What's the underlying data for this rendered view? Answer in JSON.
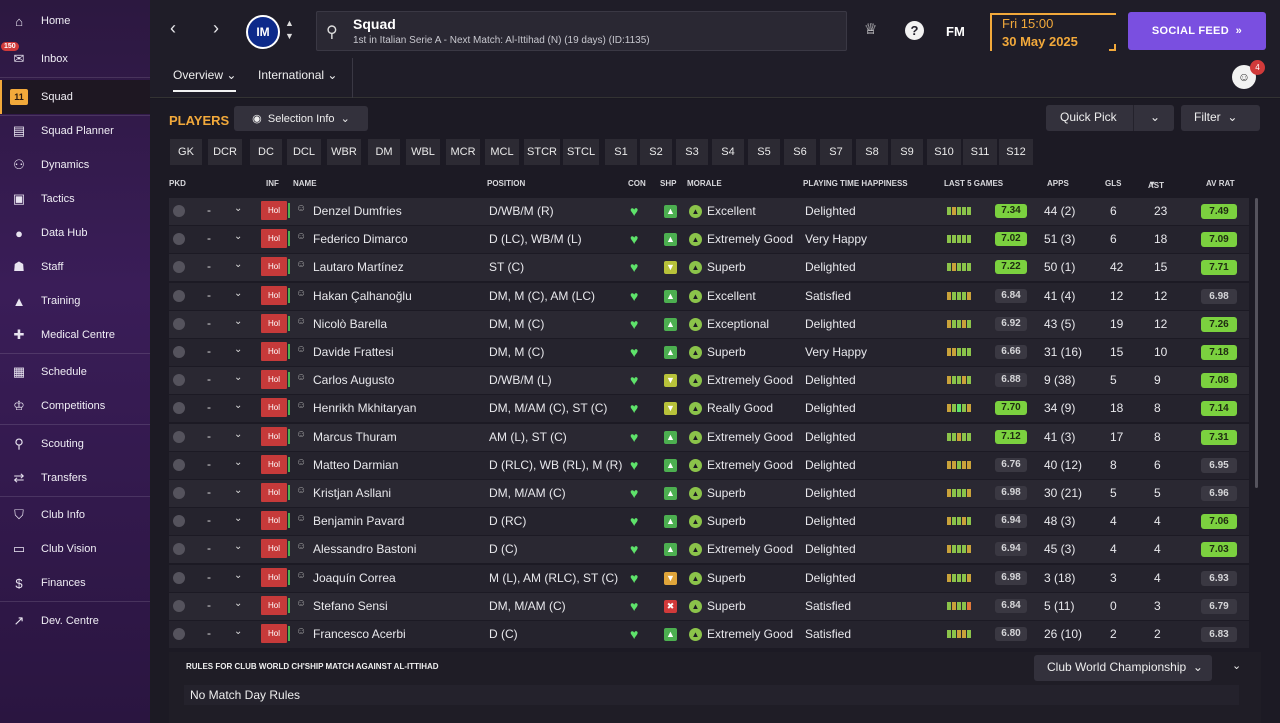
{
  "sidebar": {
    "items": [
      {
        "label": "Home",
        "icon": "home-icon",
        "glyph": "⌂"
      },
      {
        "label": "Inbox",
        "icon": "inbox-icon",
        "glyph": "✉",
        "badge": "150"
      },
      {
        "label": "Squad",
        "icon": "squad-shirt-icon",
        "glyph": "11"
      },
      {
        "label": "Squad Planner",
        "icon": "clipboard-icon",
        "glyph": "▤"
      },
      {
        "label": "Dynamics",
        "icon": "dynamics-icon",
        "glyph": "⚇"
      },
      {
        "label": "Tactics",
        "icon": "tactics-board-icon",
        "glyph": "▣"
      },
      {
        "label": "Data Hub",
        "icon": "data-hub-icon",
        "glyph": "●"
      },
      {
        "label": "Staff",
        "icon": "staff-icon",
        "glyph": "☗"
      },
      {
        "label": "Training",
        "icon": "training-cone-icon",
        "glyph": "▲"
      },
      {
        "label": "Medical Centre",
        "icon": "medical-kit-icon",
        "glyph": "✚"
      },
      {
        "label": "Schedule",
        "icon": "calendar-icon",
        "glyph": "▦"
      },
      {
        "label": "Competitions",
        "icon": "trophy-icon",
        "glyph": "♔"
      },
      {
        "label": "Scouting",
        "icon": "magnifier-icon",
        "glyph": "⚲"
      },
      {
        "label": "Transfers",
        "icon": "transfer-arrows-icon",
        "glyph": "⇄"
      },
      {
        "label": "Club Info",
        "icon": "club-shield-icon",
        "glyph": "⛉"
      },
      {
        "label": "Club Vision",
        "icon": "briefcase-icon",
        "glyph": "▭"
      },
      {
        "label": "Finances",
        "icon": "finances-icon",
        "glyph": "$"
      },
      {
        "label": "Dev. Centre",
        "icon": "development-icon",
        "glyph": "↗"
      }
    ]
  },
  "header": {
    "title": "Squad",
    "subtitle": "1st in Italian Serie A - Next Match: Al-Ittihad (N) (19 days) (ID:1135)",
    "crest_text": "IM",
    "fm_label": "FM",
    "help_label": "?",
    "date_line1": "Fri 15:00",
    "date_line2": "30 May 2025",
    "social_label": "SOCIAL FEED",
    "notif_count": "4"
  },
  "subnav": {
    "tabs": [
      "Overview",
      "International"
    ]
  },
  "panel": {
    "players_label": "PLAYERS",
    "selection_info": "Selection Info",
    "quick_pick": "Quick Pick",
    "filter": "Filter",
    "positions": [
      "GK",
      "DCR",
      "DC",
      "DCL",
      "WBR",
      "DM",
      "WBL",
      "MCR",
      "MCL",
      "STCR",
      "STCL",
      "S1",
      "S2",
      "S3",
      "S4",
      "S5",
      "S6",
      "S7",
      "S8",
      "S9",
      "S10",
      "S11",
      "S12"
    ]
  },
  "table": {
    "headers": {
      "pkd": "PKD",
      "inf": "INF",
      "name": "NAME",
      "position": "POSITION",
      "con": "CON",
      "shp": "SHP",
      "morale": "MORALE",
      "pth": "PLAYING TIME HAPPINESS",
      "last5": "LAST 5 GAMES",
      "apps": "APPS",
      "gls": "GLS",
      "ast": "AST",
      "avrat": "AV RAT"
    },
    "rows": [
      {
        "pkd": "-",
        "inf": "Hol",
        "name": "Denzel Dumfries",
        "position": "D/WB/M (R)",
        "shp": "up",
        "morale": "Excellent",
        "pth": "Delighted",
        "last5": "7.34",
        "apps": "44 (2)",
        "gls": "6",
        "ast": "23",
        "avrat": "7.49"
      },
      {
        "pkd": "-",
        "inf": "Hol",
        "name": "Federico Dimarco",
        "position": "D (LC), WB/M (L)",
        "shp": "up",
        "morale": "Extremely Good",
        "pth": "Very Happy",
        "last5": "7.02",
        "apps": "51 (3)",
        "gls": "6",
        "ast": "18",
        "avrat": "7.09"
      },
      {
        "pkd": "-",
        "inf": "Hol",
        "name": "Lautaro Martínez",
        "position": "ST (C)",
        "shp": "mid",
        "morale": "Superb",
        "pth": "Delighted",
        "last5": "7.22",
        "apps": "50 (1)",
        "gls": "42",
        "ast": "15",
        "avrat": "7.71"
      },
      {
        "pkd": "-",
        "inf": "Hol",
        "name": "Hakan Çalhanoğlu",
        "position": "DM, M (C), AM (LC)",
        "shp": "up",
        "morale": "Excellent",
        "pth": "Satisfied",
        "last5": "6.84",
        "apps": "41 (4)",
        "gls": "12",
        "ast": "12",
        "avrat": "6.98"
      },
      {
        "pkd": "-",
        "inf": "Hol",
        "name": "Nicolò Barella",
        "position": "DM, M (C)",
        "shp": "up",
        "morale": "Exceptional",
        "pth": "Delighted",
        "last5": "6.92",
        "apps": "43 (5)",
        "gls": "19",
        "ast": "12",
        "avrat": "7.26"
      },
      {
        "pkd": "-",
        "inf": "Hol",
        "name": "Davide Frattesi",
        "position": "DM, M (C)",
        "shp": "up",
        "morale": "Superb",
        "pth": "Very Happy",
        "last5": "6.66",
        "apps": "31 (16)",
        "gls": "15",
        "ast": "10",
        "avrat": "7.18"
      },
      {
        "pkd": "-",
        "inf": "Hol",
        "name": "Carlos Augusto",
        "position": "D/WB/M (L)",
        "shp": "mid",
        "morale": "Extremely Good",
        "pth": "Delighted",
        "last5": "6.88",
        "apps": "9 (38)",
        "gls": "5",
        "ast": "9",
        "avrat": "7.08"
      },
      {
        "pkd": "-",
        "inf": "Hol",
        "name": "Henrikh Mkhitaryan",
        "position": "DM, M/AM (C), ST (C)",
        "shp": "mid",
        "morale": "Really Good",
        "pth": "Delighted",
        "last5": "7.70",
        "apps": "34 (9)",
        "gls": "18",
        "ast": "8",
        "avrat": "7.14"
      },
      {
        "pkd": "-",
        "inf": "Hol",
        "name": "Marcus Thuram",
        "position": "AM (L), ST (C)",
        "shp": "up",
        "morale": "Extremely Good",
        "pth": "Delighted",
        "last5": "7.12",
        "apps": "41 (3)",
        "gls": "17",
        "ast": "8",
        "avrat": "7.31"
      },
      {
        "pkd": "-",
        "inf": "Hol",
        "name": "Matteo Darmian",
        "position": "D (RLC), WB (RL), M (R)",
        "shp": "up",
        "morale": "Extremely Good",
        "pth": "Delighted",
        "last5": "6.76",
        "apps": "40 (12)",
        "gls": "8",
        "ast": "6",
        "avrat": "6.95"
      },
      {
        "pkd": "-",
        "inf": "Hol",
        "name": "Kristjan Asllani",
        "position": "DM, M/AM (C)",
        "shp": "up",
        "morale": "Superb",
        "pth": "Delighted",
        "last5": "6.98",
        "apps": "30 (21)",
        "gls": "5",
        "ast": "5",
        "avrat": "6.96"
      },
      {
        "pkd": "-",
        "inf": "Hol",
        "name": "Benjamin Pavard",
        "position": "D (RC)",
        "shp": "up",
        "morale": "Superb",
        "pth": "Delighted",
        "last5": "6.94",
        "apps": "48 (3)",
        "gls": "4",
        "ast": "4",
        "avrat": "7.06"
      },
      {
        "pkd": "-",
        "inf": "Hol",
        "name": "Alessandro Bastoni",
        "position": "D (C)",
        "shp": "up",
        "morale": "Extremely Good",
        "pth": "Delighted",
        "last5": "6.94",
        "apps": "45 (3)",
        "gls": "4",
        "ast": "4",
        "avrat": "7.03"
      },
      {
        "pkd": "-",
        "inf": "Hol",
        "name": "Joaquín Correa",
        "position": "M (L), AM (RLC), ST (C)",
        "shp": "low",
        "morale": "Superb",
        "pth": "Delighted",
        "last5": "6.98",
        "apps": "3 (18)",
        "gls": "3",
        "ast": "4",
        "avrat": "6.93"
      },
      {
        "pkd": "-",
        "inf": "Hol",
        "name": "Stefano Sensi",
        "position": "DM, M/AM (C)",
        "shp": "bad",
        "morale": "Superb",
        "pth": "Satisfied",
        "last5": "6.84",
        "apps": "5 (11)",
        "gls": "0",
        "ast": "3",
        "avrat": "6.79"
      },
      {
        "pkd": "-",
        "inf": "Hol",
        "name": "Francesco Acerbi",
        "position": "D (C)",
        "shp": "up",
        "morale": "Extremely Good",
        "pth": "Satisfied",
        "last5": "6.80",
        "apps": "26 (10)",
        "gls": "2",
        "ast": "2",
        "avrat": "6.83"
      }
    ]
  },
  "rules": {
    "title": "RULES FOR CLUB WORLD CH'SHIP MATCH AGAINST AL-ITTIHAD",
    "competition": "Club World Championship",
    "text": "No Match Day Rules"
  },
  "colors": {
    "accent": "#f2a93b",
    "social": "#7a4fe0",
    "good": "#7bd13f",
    "inf": "#c63a3a"
  }
}
